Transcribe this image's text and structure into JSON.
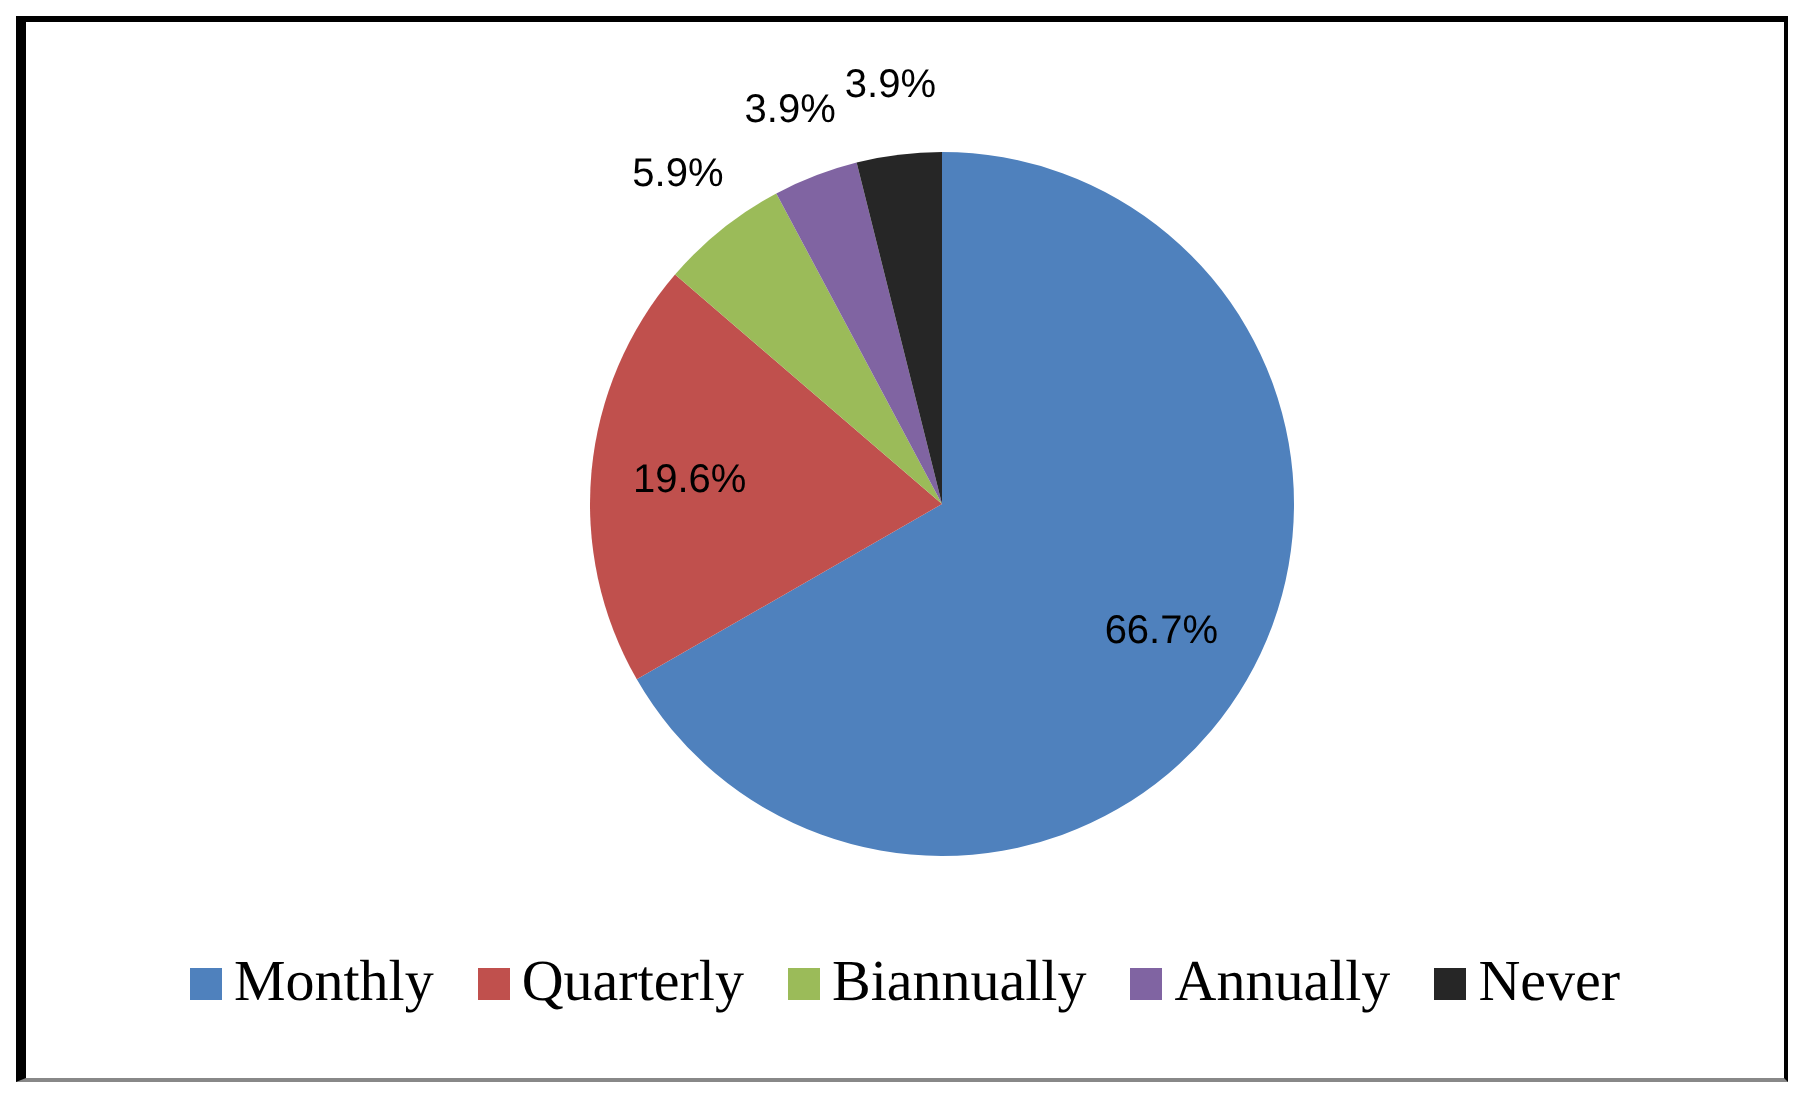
{
  "chart_data": {
    "type": "pie",
    "categories": [
      "Monthly",
      "Quarterly",
      "Biannually",
      "Annually",
      "Never"
    ],
    "values": [
      66.7,
      19.6,
      5.9,
      3.9,
      3.9
    ],
    "colors": [
      "#4f81bd",
      "#c0504d",
      "#9bbb59",
      "#8064a2",
      "#262626"
    ],
    "value_labels": [
      "66.7%",
      "19.6%",
      "5.9%",
      "3.9%",
      "3.9%"
    ],
    "legend": "bottom"
  }
}
